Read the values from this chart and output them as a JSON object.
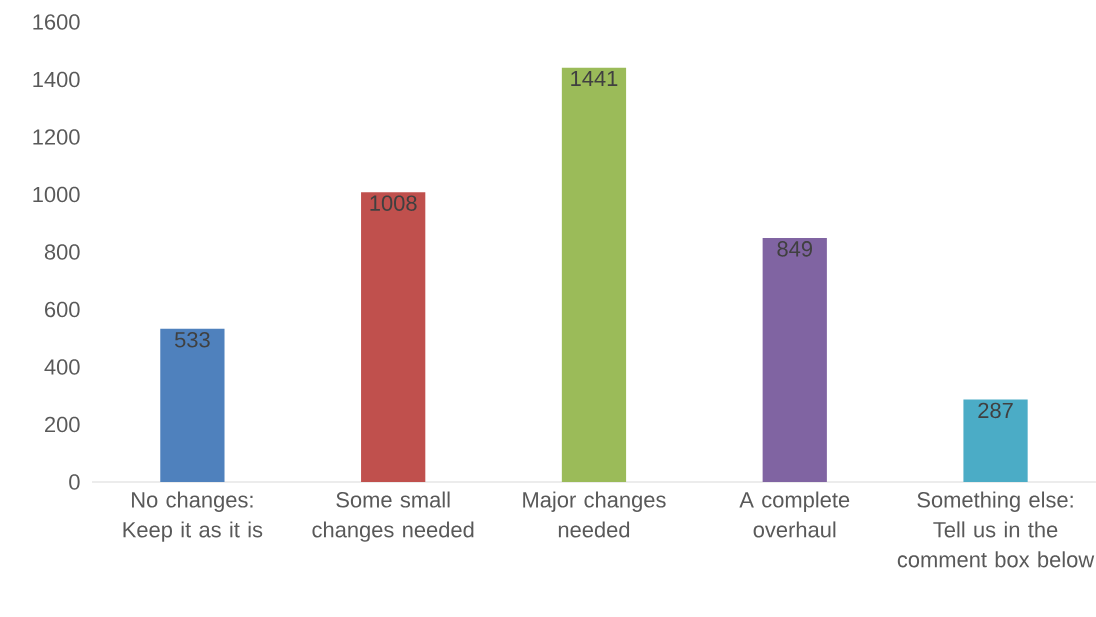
{
  "chart_data": {
    "type": "bar",
    "categories": [
      "No changes: Keep it as it is",
      "Some small changes needed",
      "Major changes needed",
      "A complete overhaul",
      "Something else: Tell us in the comment box below"
    ],
    "values": [
      533,
      1008,
      1441,
      849,
      287
    ],
    "colors": [
      "#4f81bd",
      "#c0504d",
      "#9bbb59",
      "#8064a2",
      "#4bacc6"
    ],
    "ylim": [
      0,
      1600
    ],
    "yticks": [
      0,
      200,
      400,
      600,
      800,
      1000,
      1200,
      1400,
      1600
    ],
    "data_labels": true
  }
}
